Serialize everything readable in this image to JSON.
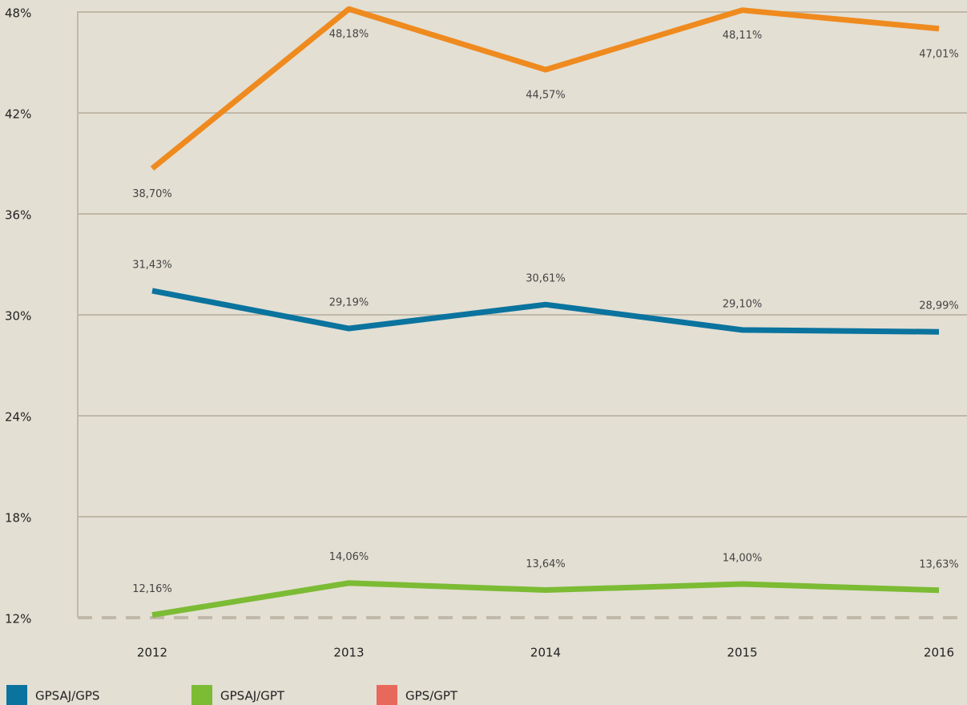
{
  "chart_data": {
    "type": "line",
    "categories": [
      "2012",
      "2013",
      "2014",
      "2015",
      "2016"
    ],
    "series": [
      {
        "name": "GPSAJ/GPS",
        "color": "#0a739e",
        "legend_color": "#0a739e",
        "values": [
          31.43,
          29.19,
          30.61,
          29.1,
          28.99
        ],
        "value_labels": [
          "31,43%",
          "29,19%",
          "30,61%",
          "29,10%",
          "28,99%"
        ]
      },
      {
        "name": "GPSAJ/GPT",
        "color": "#7cbb34",
        "legend_color": "#7cbb34",
        "values": [
          12.16,
          14.06,
          13.64,
          14.0,
          13.63
        ],
        "value_labels": [
          "12,16%",
          "14,06%",
          "13,64%",
          "14,00%",
          "13,63%"
        ]
      },
      {
        "name": "GPS/GPT",
        "color": "#ef8a1f",
        "legend_color": "#e8695b",
        "values": [
          38.7,
          48.18,
          44.57,
          48.11,
          47.01
        ],
        "value_labels": [
          "38,70%",
          "48,18%",
          "44,57%",
          "48,11%",
          "47,01%"
        ]
      }
    ],
    "ylim": [
      12,
      48
    ],
    "yticks": [
      {
        "value": 12,
        "label": "12%"
      },
      {
        "value": 18,
        "label": "18%"
      },
      {
        "value": 24,
        "label": "24%"
      },
      {
        "value": 30,
        "label": "30%"
      },
      {
        "value": 36,
        "label": "36%"
      },
      {
        "value": 42,
        "label": "42%"
      },
      {
        "value": 48,
        "label": "48%"
      }
    ],
    "grid": true
  }
}
